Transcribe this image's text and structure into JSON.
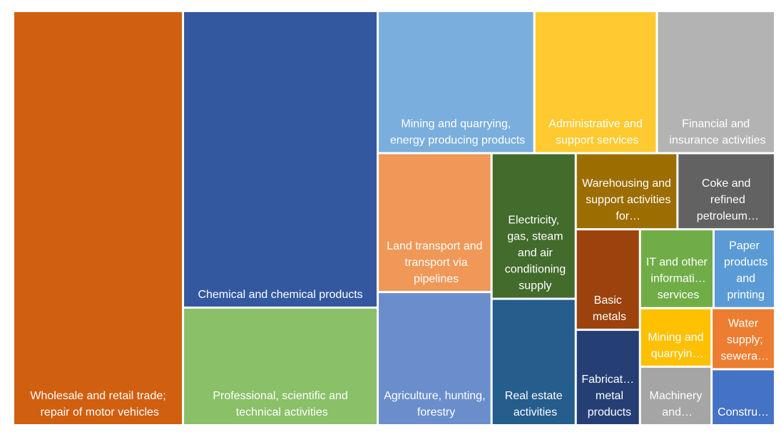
{
  "chart_data": {
    "type": "treemap",
    "categories": [
      "Wholesale and retail trade; repair of motor vehicles",
      "Chemical and chemical products",
      "Professional, scientific and technical activities",
      "Mining and quarrying, energy producing products",
      "Administrative and support services",
      "Financial and insurance activities",
      "Land transport and transport via pipelines",
      "Agriculture, hunting, forestry",
      "Electricity, gas, steam and air conditioning supply",
      "Real estate activities",
      "Warehousing and support activities for…",
      "Coke and refined petroleum…",
      "Basic metals",
      "Fabricat… metal products",
      "IT and other informati… services",
      "Paper products and printing",
      "Mining and quarryin…",
      "Machinery and…",
      "Water supply; sewera…",
      "Constru…"
    ],
    "values": [
      21.8,
      17.9,
      7.1,
      6.9,
      5.4,
      5.2,
      4.9,
      4.7,
      3.8,
      3.3,
      2.4,
      2.3,
      2.0,
      1.9,
      1.8,
      1.5,
      1.3,
      1.3,
      1.2,
      1.1
    ],
    "colors": [
      "#d05f10",
      "#3358a0",
      "#8ac068",
      "#7aaedc",
      "#ffc930",
      "#b3b3b3",
      "#f09858",
      "#6a8ecc",
      "#426b2c",
      "#255d8d",
      "#9c6d00",
      "#626262",
      "#9c420c",
      "#253f75",
      "#70ad47",
      "#5b9bd5",
      "#ffc000",
      "#a5a5a5",
      "#ed7d31",
      "#4472c4"
    ]
  }
}
